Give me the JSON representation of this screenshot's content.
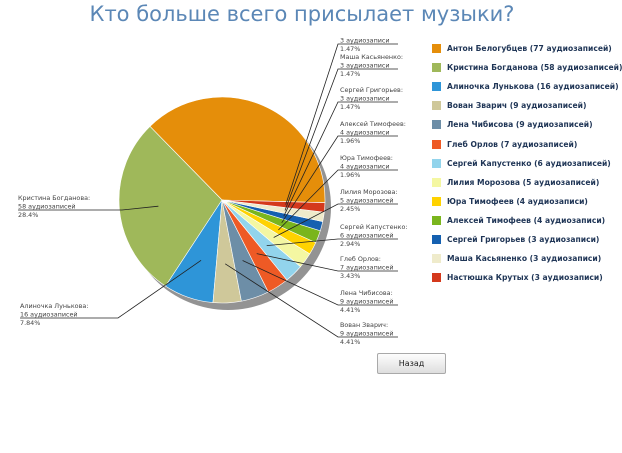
{
  "title": "Кто больше всего присылает музыки?",
  "back_button": "Назад",
  "chart_data": {
    "type": "pie",
    "title": "Кто больше всего присылает музыки?",
    "unit": "аудиозаписей",
    "legend_position": "right",
    "slices": [
      {
        "name": "Антон Белогубцев",
        "value": 77,
        "legend": "Антон Белогубцев (77 аудиозаписей)",
        "label_lines": [],
        "color": "#e58e0a"
      },
      {
        "name": "Кристина Богданова",
        "value": 58,
        "legend": "Кристина Богданова (58 аудиозаписей)",
        "label_lines": [
          "Кристина Богданова:",
          "58 аудиозаписей",
          "28.4%"
        ],
        "color": "#9fb85a"
      },
      {
        "name": "Алиночка Лунькова",
        "value": 16,
        "legend": "Алиночка Лунькова (16 аудиозаписей)",
        "label_lines": [
          "Алиночка Лунькова:",
          "16 аудиозаписей",
          "7.84%"
        ],
        "color": "#2e95d8"
      },
      {
        "name": "Вован Зварич",
        "value": 9,
        "legend": "Вован Зварич (9 аудиозаписей)",
        "label_lines": [
          "Вован Зварич:",
          "9 аудиозаписей",
          "4.41%"
        ],
        "color": "#cfc89a"
      },
      {
        "name": "Лена Чибисова",
        "value": 9,
        "legend": "Лена Чибисова (9 аудиозаписей)",
        "label_lines": [
          "Лена Чибисова:",
          "9 аудиозаписей",
          "4.41%"
        ],
        "color": "#6d8ea7"
      },
      {
        "name": "Глеб Орлов",
        "value": 7,
        "legend": "Глеб Орлов (7 аудиозаписей)",
        "label_lines": [
          "Глеб Орлов:",
          "7 аудиозаписей",
          "3.43%"
        ],
        "color": "#ee5a25"
      },
      {
        "name": "Сергей Капустенко",
        "value": 6,
        "legend": "Сергей Капустенко (6 аудиозаписей)",
        "label_lines": [
          "Сергей Капустенко:",
          "6 аудиозаписей",
          "2.94%"
        ],
        "color": "#92d4ec"
      },
      {
        "name": "Лилия Морозова",
        "value": 5,
        "legend": "Лилия Морозова (5 аудиозаписей)",
        "label_lines": [
          "Лилия Морозова:",
          "5 аудиозаписей",
          "2.45%"
        ],
        "color": "#f4f7a2"
      },
      {
        "name": "Юра Тимофеев",
        "value": 4,
        "legend": "Юра Тимофеев (4 аудиозаписи)",
        "label_lines": [
          "Юра Тимофеев:",
          "4 аудиозаписи",
          "1.96%"
        ],
        "color": "#ffd200"
      },
      {
        "name": "Алексей Тимофеев",
        "value": 4,
        "legend": "Алексей Тимофеев (4 аудиозаписи)",
        "label_lines": [
          "Алексей Тимофеев:",
          "4 аудиозаписи",
          "1.96%"
        ],
        "color": "#7ab51d"
      },
      {
        "name": "Сергей Григорьев",
        "value": 3,
        "legend": "Сергей Григорьев (3 аудиозаписи)",
        "label_lines": [
          "Сергей Григорьев:",
          "3 аудиозаписи",
          "1.47%"
        ],
        "color": "#1560b0"
      },
      {
        "name": "Маша Касьяненко",
        "value": 3,
        "legend": "Маша Касьяненко (3 аудиозаписи)",
        "label_lines": [
          "Маша Касьяненко:",
          "3 аудиозаписи",
          "1.47%"
        ],
        "color": "#efebcb"
      },
      {
        "name": "Настюшка Крутых",
        "value": 3,
        "legend": "Настюшка Крутых (3 аудиозаписи)",
        "label_lines": [
          "",
          "3 аудиозаписи",
          "1.47%"
        ],
        "color": "#d4391c"
      }
    ]
  }
}
